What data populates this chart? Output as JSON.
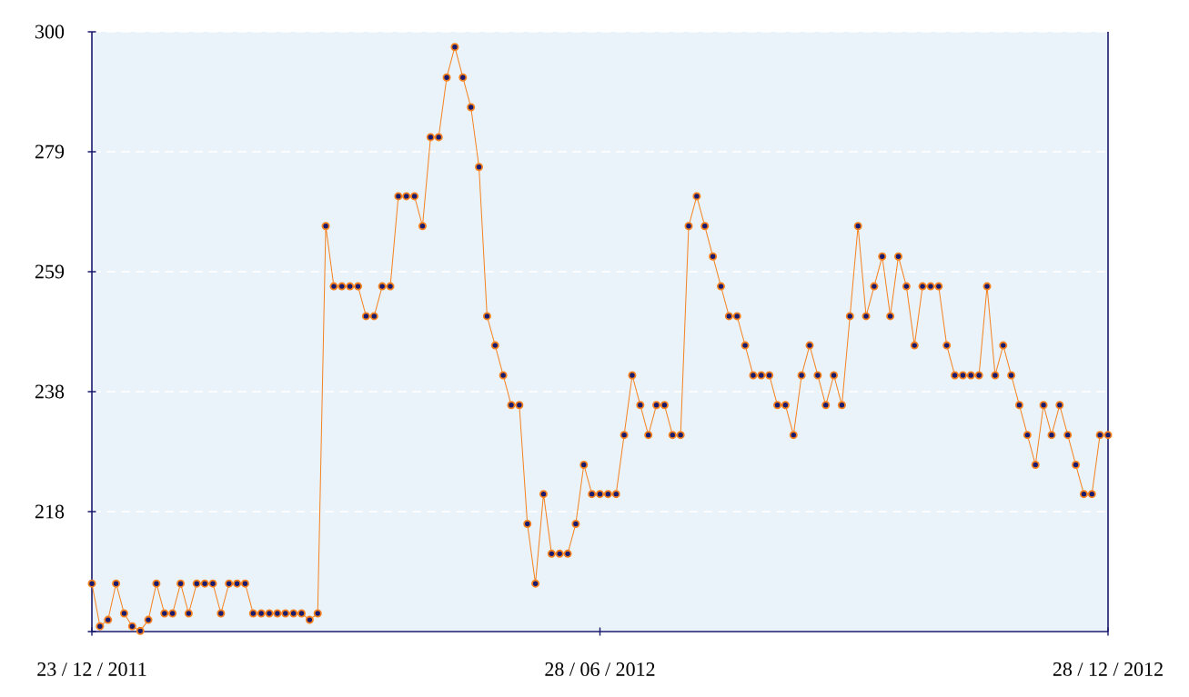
{
  "chart_data": {
    "type": "line",
    "categories": [
      "23 / 12 / 2011",
      null,
      null,
      null,
      null,
      null,
      null,
      null,
      null,
      null,
      null,
      null,
      null,
      null,
      null,
      null,
      null,
      null,
      null,
      null,
      null,
      null,
      null,
      null,
      null,
      null,
      null,
      null,
      null,
      null,
      null,
      null,
      null,
      null,
      null,
      null,
      null,
      null,
      null,
      null,
      null,
      null,
      null,
      null,
      null,
      null,
      null,
      null,
      null,
      null,
      null,
      null,
      null,
      null,
      null,
      null,
      null,
      null,
      null,
      null,
      null,
      null,
      null,
      "28 / 06 / 2012",
      null,
      null,
      null,
      null,
      null,
      null,
      null,
      null,
      null,
      null,
      null,
      null,
      null,
      null,
      null,
      null,
      null,
      null,
      null,
      null,
      null,
      null,
      null,
      null,
      null,
      null,
      null,
      null,
      null,
      null,
      null,
      null,
      null,
      null,
      null,
      null,
      null,
      null,
      null,
      null,
      null,
      null,
      null,
      null,
      null,
      null,
      null,
      null,
      null,
      null,
      null,
      null,
      null,
      null,
      null,
      null,
      null,
      null,
      null,
      null,
      null,
      null,
      "28 / 12 / 2012"
    ],
    "values": [
      205.7,
      198.4,
      199.5,
      205.7,
      200.6,
      198.4,
      197.6,
      199.5,
      205.7,
      200.6,
      200.6,
      205.7,
      200.6,
      205.7,
      205.7,
      205.7,
      200.6,
      205.7,
      205.7,
      205.7,
      200.6,
      200.6,
      200.6,
      200.6,
      200.6,
      200.6,
      200.6,
      199.5,
      200.6,
      266.8,
      256.5,
      256.5,
      256.5,
      256.5,
      251.4,
      251.4,
      256.5,
      256.5,
      271.9,
      271.9,
      271.9,
      266.8,
      282.0,
      282.0,
      292.2,
      297.4,
      292.2,
      287.1,
      276.9,
      251.4,
      246.4,
      241.3,
      236.2,
      236.2,
      215.9,
      205.7,
      221.0,
      210.8,
      210.8,
      210.8,
      215.9,
      226.0,
      221.0,
      221.0,
      221.0,
      221.0,
      231.1,
      241.3,
      236.2,
      231.1,
      236.2,
      236.2,
      231.1,
      231.1,
      266.8,
      271.9,
      266.8,
      261.6,
      256.5,
      251.4,
      251.4,
      246.4,
      241.3,
      241.3,
      241.3,
      236.2,
      236.2,
      231.1,
      241.3,
      246.4,
      241.3,
      236.2,
      241.3,
      236.2,
      251.4,
      266.8,
      251.4,
      256.5,
      261.6,
      251.4,
      261.6,
      256.5,
      246.4,
      256.5,
      256.5,
      256.5,
      246.4,
      241.3,
      241.3,
      241.3,
      241.3,
      256.5,
      241.3,
      246.4,
      241.3,
      236.2,
      231.1,
      226.0,
      236.2,
      231.1,
      236.2,
      231.1,
      226.0,
      221.0,
      221.0,
      231.1,
      231.1
    ],
    "color": "#f5821f",
    "ylim": [
      197.5,
      300
    ],
    "yticks": [
      {
        "value": 197.5,
        "label": null
      },
      {
        "value": 218,
        "label": "218"
      },
      {
        "value": 238.5,
        "label": "238"
      },
      {
        "value": 259,
        "label": "259"
      },
      {
        "value": 279.5,
        "label": "279"
      },
      {
        "value": 300,
        "label": "300"
      }
    ],
    "grid": "y",
    "marker": "circle",
    "line_style": "solid"
  }
}
